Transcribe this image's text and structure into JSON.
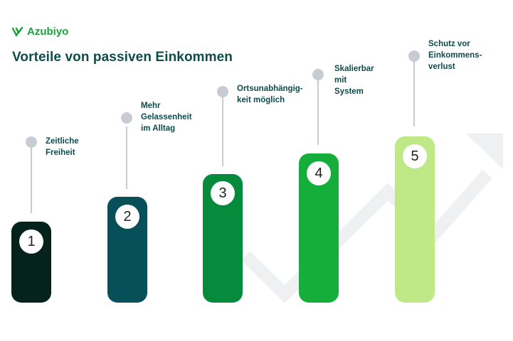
{
  "brand": {
    "name": "Azubiyo",
    "color": "#19a33a"
  },
  "title": "Vorteile von passiven Einkommen",
  "steps": [
    {
      "number": "1",
      "label": "Zeitliche Freiheit",
      "color": "#06221c"
    },
    {
      "number": "2",
      "label": "Mehr\nGelassenheit\nim Alltag",
      "color": "#07505a"
    },
    {
      "number": "3",
      "label": "Ortsunabhängig-\nkeit möglich",
      "color": "#068a3c"
    },
    {
      "number": "4",
      "label": "Skalierbar mit\nSystem",
      "color": "#15ae3a"
    },
    {
      "number": "5",
      "label": "Schutz vor\nEinkommens-\nverlust",
      "color": "#bfe887"
    }
  ]
}
